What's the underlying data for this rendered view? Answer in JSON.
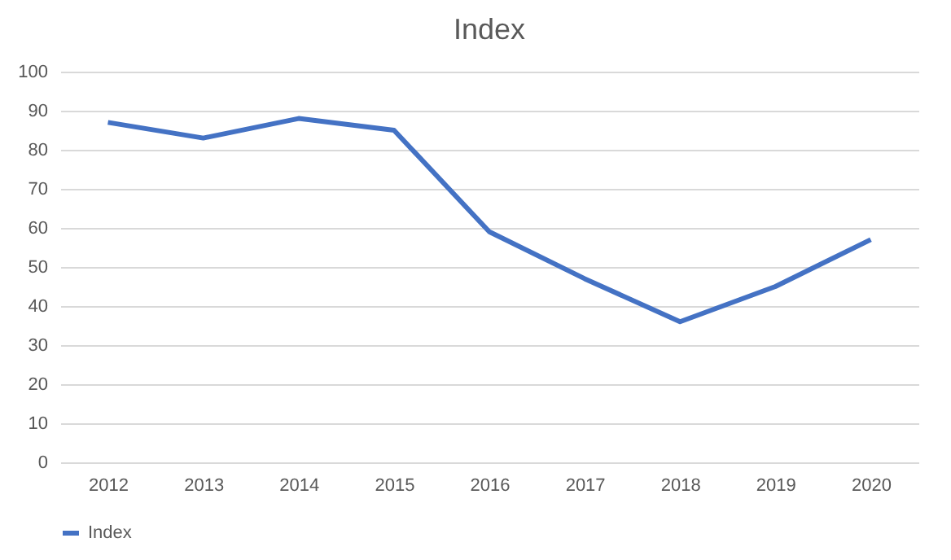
{
  "chart_data": {
    "type": "line",
    "title": "Index",
    "categories": [
      "2012",
      "2013",
      "2014",
      "2015",
      "2016",
      "2017",
      "2018",
      "2019",
      "2020"
    ],
    "series": [
      {
        "name": "Index",
        "color": "#4472c4",
        "values": [
          87,
          83,
          88,
          85,
          59,
          47,
          36,
          45,
          57
        ]
      }
    ],
    "ylim": [
      0,
      100
    ],
    "yticks": [
      0,
      10,
      20,
      30,
      40,
      50,
      60,
      70,
      80,
      90,
      100
    ],
    "grid": "y",
    "legend": "bottom",
    "marker": "none",
    "line_style": "solid"
  }
}
